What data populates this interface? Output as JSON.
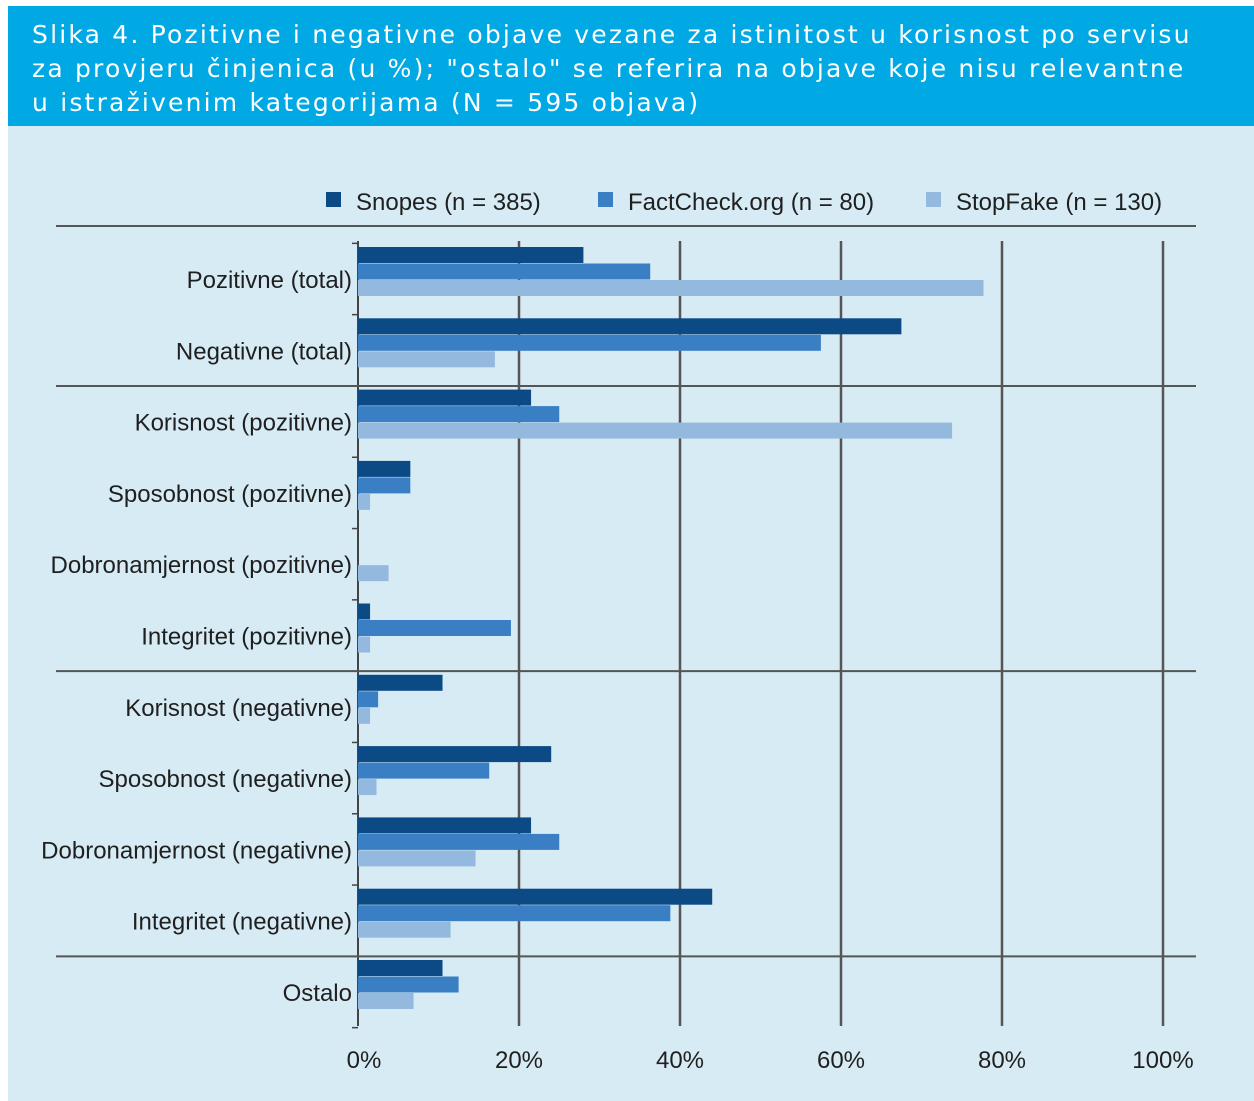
{
  "header": {
    "lines": [
      "Slika 4. Pozitivne i negativne objave vezane za istinitost u korisnost po servisu",
      "za provjeru činjenica (u %); \"ostalo\" se referira na objave koje nisu relevantne",
      "u istraživenim kategorijama (N = 595 objava)"
    ]
  },
  "colors": {
    "header_bg": "#00a9e4",
    "panel_bg": "#d7ebf5",
    "snopes": "#0c4a86",
    "factcheck": "#3a7fc4",
    "stopfake": "#93b9df",
    "grid": "#555555"
  },
  "chart_data": {
    "type": "bar",
    "orientation": "horizontal",
    "categories": [
      "Pozitivne (total)",
      "Negativne (total)",
      "Korisnost (pozitivne)",
      "Sposobnost (pozitivne)",
      "Dobronamjernost (pozitivne)",
      "Integritet (pozitivne)",
      "Korisnost (negativne)",
      "Sposobnost (negativne)",
      "Dobronamjernost (negativne)",
      "Integritet (negativne)",
      "Ostalo"
    ],
    "series": [
      {
        "name": "Snopes (n = 385)",
        "color": "#0c4a86",
        "values": [
          28,
          67.5,
          21.5,
          6.5,
          0,
          1.5,
          10.5,
          24,
          21.5,
          44,
          10.5
        ]
      },
      {
        "name": "FactCheck.org (n = 80)",
        "color": "#3a7fc4",
        "values": [
          36.3,
          57.5,
          25,
          6.5,
          0,
          19,
          2.5,
          16.3,
          25,
          38.8,
          12.5
        ]
      },
      {
        "name": "StopFake (n = 130)",
        "color": "#93b9df",
        "values": [
          77.7,
          17,
          73.8,
          1.5,
          3.8,
          1.5,
          1.5,
          2.3,
          14.6,
          11.5,
          6.9
        ]
      }
    ],
    "group_separators_after": [
      1,
      5,
      9
    ],
    "xlim": [
      0,
      100
    ],
    "xticks": [
      0,
      20,
      40,
      60,
      80,
      100
    ],
    "xtick_labels": [
      "0%",
      "20%",
      "40%",
      "60%",
      "80%",
      "100%"
    ],
    "grid": true,
    "legend": "top"
  }
}
